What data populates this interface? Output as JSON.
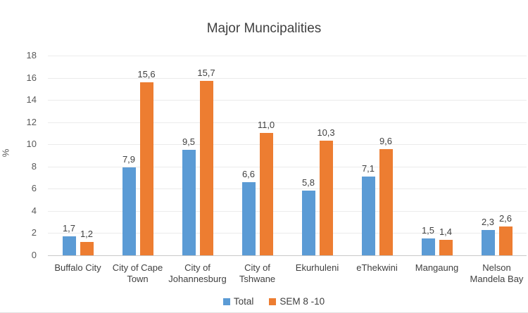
{
  "window": {
    "background": "#FFFFFF",
    "bottom_edge_color": "#E2E2E2"
  },
  "colors": {
    "series_total": "#5B9BD5",
    "series_sem": "#ED7D31",
    "gridline": "#EBEBEB",
    "axis_line": "#C8C8C8",
    "title_text": "#404040",
    "tick_text": "#595959",
    "label_text": "#404040"
  },
  "chart_data": {
    "type": "bar",
    "title": "Major Muncipalities",
    "xlabel": "",
    "ylabel": "%",
    "ylim": [
      0,
      18
    ],
    "yticks": [
      0,
      2,
      4,
      6,
      8,
      10,
      12,
      14,
      16,
      18
    ],
    "grid": true,
    "legend_position": "bottom",
    "decimal_separator": ",",
    "categories": [
      "Buffalo City",
      "City of Cape Town",
      "City of Johannesburg",
      "City of Tshwane",
      "Ekurhuleni",
      "eThekwini",
      "Mangaung",
      "Nelson Mandela Bay"
    ],
    "series": [
      {
        "name": "Total",
        "color": "#5B9BD5",
        "values": [
          1.7,
          7.9,
          9.5,
          6.6,
          5.8,
          7.1,
          1.5,
          2.3
        ],
        "labels": [
          "1,7",
          "7,9",
          "9,5",
          "6,6",
          "5,8",
          "7,1",
          "1,5",
          "2,3"
        ]
      },
      {
        "name": "SEM 8 -10",
        "color": "#ED7D31",
        "values": [
          1.2,
          15.6,
          15.7,
          11.0,
          10.3,
          9.6,
          1.4,
          2.6
        ],
        "labels": [
          "1,2",
          "15,6",
          "15,7",
          "11,0",
          "10,3",
          "9,6",
          "1,4",
          "2,6"
        ]
      }
    ]
  }
}
